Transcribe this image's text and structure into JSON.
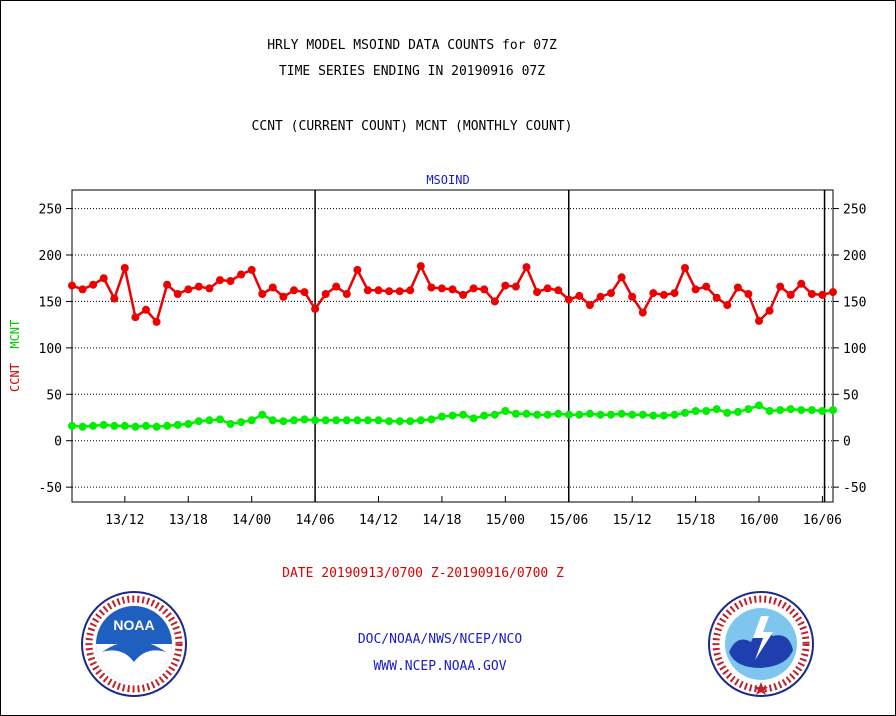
{
  "header": {
    "title_line1": "HRLY MODEL MSOIND DATA COUNTS for 07Z",
    "title_line2": "TIME SERIES ENDING IN 20190916 07Z",
    "title_line3": "CCNT (CURRENT COUNT) MCNT (MONTHLY COUNT)"
  },
  "footer": {
    "date_range": "DATE 20190913/0700 Z-20190916/0700 Z",
    "credit": "DOC/NOAA/NWS/NCEP/NCO",
    "url": "WWW.NCEP.NOAA.GOV"
  },
  "logos": {
    "left": "NOAA",
    "right": "NATIONAL WEATHER SERVICE"
  },
  "chart_data": {
    "type": "line",
    "title": "MSOIND",
    "ylabel_parts": [
      "CCNT",
      "MCNT"
    ],
    "ylim": [
      -66,
      270
    ],
    "yticks": [
      -50,
      0,
      50,
      100,
      150,
      200,
      250
    ],
    "xlim": [
      0,
      72
    ],
    "xticks": [
      {
        "x": 5,
        "label": "13/12"
      },
      {
        "x": 11,
        "label": "13/18"
      },
      {
        "x": 17,
        "label": "14/00"
      },
      {
        "x": 23,
        "label": "14/06"
      },
      {
        "x": 29,
        "label": "14/12"
      },
      {
        "x": 35,
        "label": "14/18"
      },
      {
        "x": 41,
        "label": "15/00"
      },
      {
        "x": 47,
        "label": "15/06"
      },
      {
        "x": 53,
        "label": "15/12"
      },
      {
        "x": 59,
        "label": "15/18"
      },
      {
        "x": 65,
        "label": "16/00"
      },
      {
        "x": 71,
        "label": "16/06"
      }
    ],
    "day_boundaries_x": [
      23,
      47,
      71.2
    ],
    "grid": true,
    "series": [
      {
        "name": "CCNT",
        "color": "#ee0000",
        "values": [
          167,
          163,
          168,
          175,
          153,
          186,
          133,
          141,
          128,
          168,
          158,
          163,
          166,
          164,
          173,
          172,
          179,
          184,
          158,
          165,
          155,
          162,
          160,
          142,
          158,
          166,
          158,
          184,
          162,
          162,
          161,
          161,
          162,
          188,
          165,
          164,
          163,
          157,
          164,
          163,
          150,
          167,
          166,
          187,
          160,
          164,
          162,
          152,
          156,
          146,
          155,
          159,
          176,
          155,
          138,
          159,
          157,
          159,
          186,
          163,
          166,
          154,
          146,
          165,
          158,
          129,
          140,
          166,
          157,
          169,
          158,
          157,
          160
        ]
      },
      {
        "name": "MCNT",
        "color": "#00ee00",
        "values": [
          16,
          15,
          16,
          17,
          16,
          16,
          15,
          16,
          15,
          16,
          17,
          18,
          21,
          22,
          23,
          18,
          20,
          22,
          28,
          22,
          21,
          22,
          23,
          22,
          22,
          22,
          22,
          22,
          22,
          22,
          21,
          21,
          21,
          22,
          23,
          26,
          27,
          28,
          24,
          27,
          28,
          32,
          29,
          29,
          28,
          28,
          29,
          28,
          28,
          29,
          28,
          28,
          29,
          28,
          28,
          27,
          27,
          28,
          30,
          32,
          32,
          34,
          30,
          31,
          34,
          38,
          32,
          33,
          34,
          33,
          33,
          32,
          33
        ]
      }
    ]
  }
}
